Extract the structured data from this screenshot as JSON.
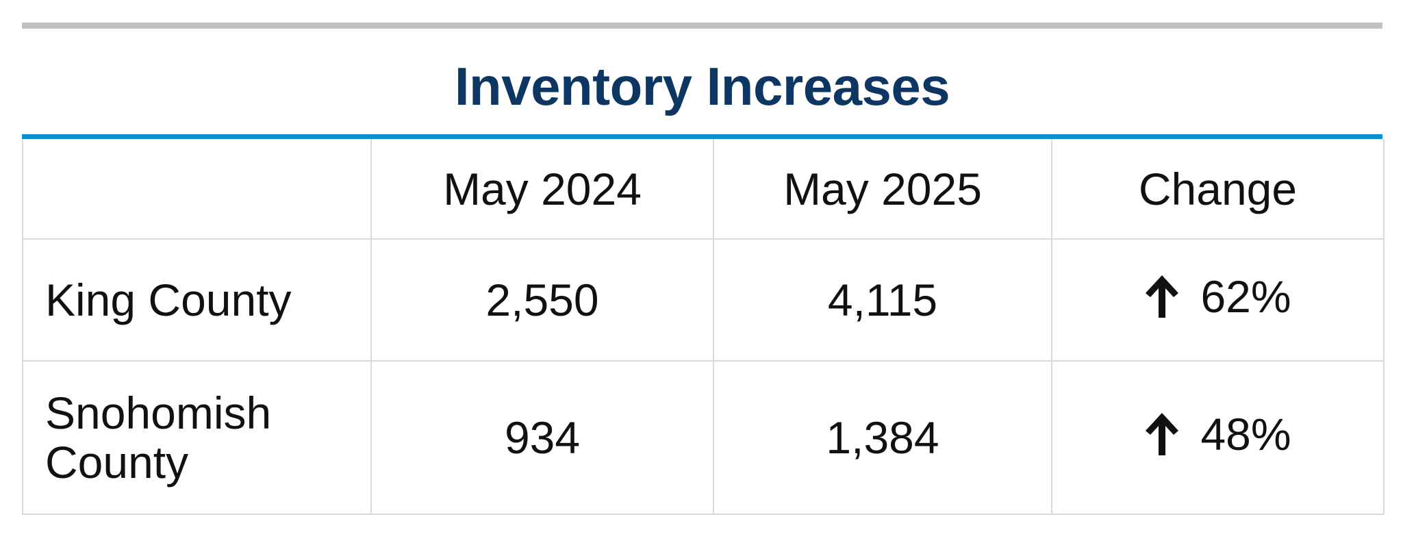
{
  "title": "Inventory Increases",
  "table": {
    "headers": [
      "",
      "May 2024",
      "May 2025",
      "Change"
    ],
    "rows": [
      {
        "label": "King County",
        "may_2024": "2,550",
        "may_2025": "4,115",
        "change_icon": "arrow-up-icon",
        "change": "62%"
      },
      {
        "label": "Snohomish County",
        "may_2024": "934",
        "may_2025": "1,384",
        "change_icon": "arrow-up-icon",
        "change": "48%"
      }
    ]
  },
  "colors": {
    "title": "#0d3762",
    "accent_rule": "#0d8fd1",
    "top_rule": "#c2c2c2",
    "grid": "#dadada"
  }
}
